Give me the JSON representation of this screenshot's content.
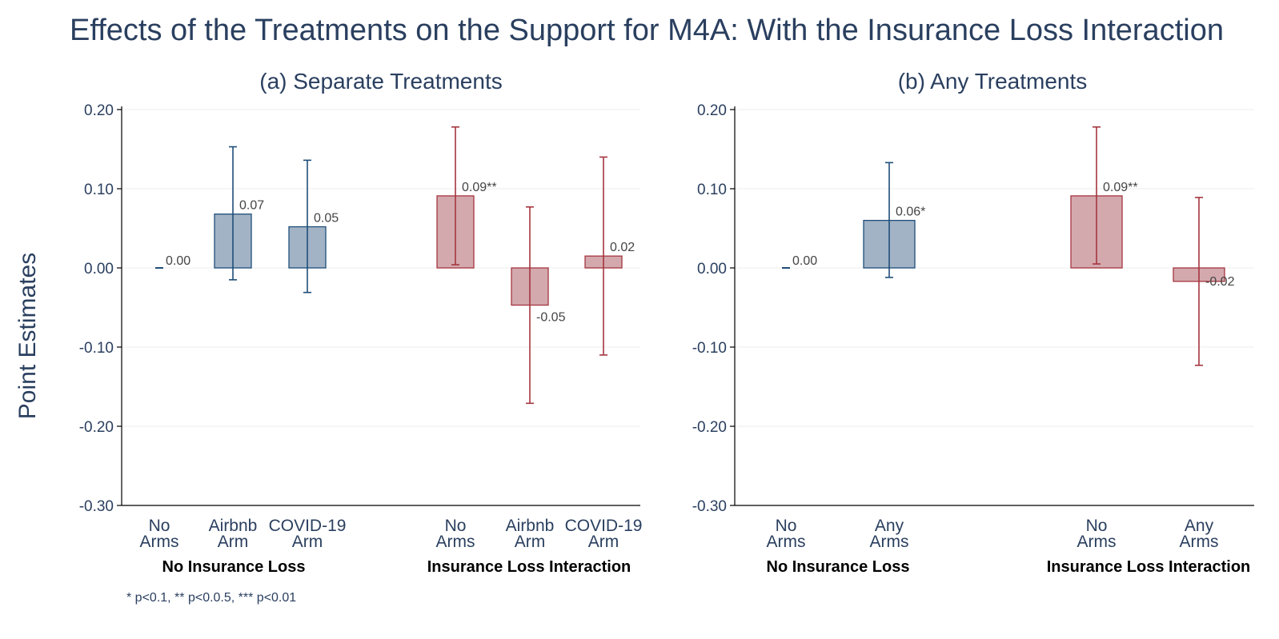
{
  "title": "Effects of the Treatments on the Support for M4A: With the Insurance Loss Interaction",
  "ylabel": "Point Estimates",
  "footnote": "* p<0.1, ** p<0.0.5, *** p<0.01",
  "colors": {
    "blue_fill": "#a2b3c5",
    "blue_line": "#1f4e79",
    "red_fill": "#d3a9ae",
    "red_line": "#a5353f"
  },
  "chart_data": [
    {
      "type": "bar",
      "title": "(a) Separate Treatments",
      "ylim": [
        -0.3,
        0.2
      ],
      "yticks": [
        0.2,
        0.1,
        0.0,
        -0.1,
        -0.2,
        -0.3
      ],
      "ytick_labels": [
        "0.20",
        "0.10",
        "0.00",
        "-0.10",
        "-0.20",
        "-0.30"
      ],
      "grid": true,
      "groups": [
        {
          "label": "No Insurance Loss",
          "color": "blue",
          "bars": [
            {
              "category": [
                "No",
                "Arms"
              ],
              "value": 0.0,
              "ci": [
                0.0,
                0.0
              ],
              "label": "0.00"
            },
            {
              "category": [
                "Airbnb",
                "Arm"
              ],
              "value": 0.068,
              "ci": [
                -0.015,
                0.153
              ],
              "label": "0.07"
            },
            {
              "category": [
                "COVID-19",
                "Arm"
              ],
              "value": 0.052,
              "ci": [
                -0.031,
                0.136
              ],
              "label": "0.05"
            }
          ]
        },
        {
          "label": "Insurance Loss Interaction",
          "color": "red",
          "bars": [
            {
              "category": [
                "No",
                "Arms"
              ],
              "value": 0.091,
              "ci": [
                0.004,
                0.178
              ],
              "label": "0.09**"
            },
            {
              "category": [
                "Airbnb",
                "Arm"
              ],
              "value": -0.047,
              "ci": [
                -0.171,
                0.077
              ],
              "label": "-0.05"
            },
            {
              "category": [
                "COVID-19",
                "Arm"
              ],
              "value": 0.015,
              "ci": [
                -0.11,
                0.14
              ],
              "label": "0.02"
            }
          ]
        }
      ]
    },
    {
      "type": "bar",
      "title": "(b) Any Treatments",
      "ylim": [
        -0.3,
        0.2
      ],
      "yticks": [
        0.2,
        0.1,
        0.0,
        -0.1,
        -0.2,
        -0.3
      ],
      "ytick_labels": [
        "0.20",
        "0.10",
        "0.00",
        "-0.10",
        "-0.20",
        "-0.30"
      ],
      "grid": true,
      "groups": [
        {
          "label": "No Insurance Loss",
          "color": "blue",
          "bars": [
            {
              "category": [
                "No",
                "Arms"
              ],
              "value": 0.0,
              "ci": [
                0.0,
                0.0
              ],
              "label": "0.00"
            },
            {
              "category": [
                "Any",
                "Arms"
              ],
              "value": 0.06,
              "ci": [
                -0.012,
                0.133
              ],
              "label": "0.06*"
            }
          ]
        },
        {
          "label": "Insurance Loss Interaction",
          "color": "red",
          "bars": [
            {
              "category": [
                "No",
                "Arms"
              ],
              "value": 0.091,
              "ci": [
                0.005,
                0.178
              ],
              "label": "0.09**"
            },
            {
              "category": [
                "Any",
                "Arms"
              ],
              "value": -0.017,
              "ci": [
                -0.123,
                0.089
              ],
              "label": "-0.02"
            }
          ]
        }
      ]
    }
  ]
}
